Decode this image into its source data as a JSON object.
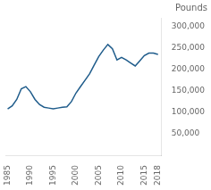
{
  "chart_data": {
    "type": "line",
    "ylabel": "Pounds",
    "x": [
      1985,
      1986,
      1987,
      1988,
      1989,
      1990,
      1991,
      1992,
      1993,
      1994,
      1995,
      1996,
      1997,
      1998,
      1999,
      2000,
      2001,
      2002,
      2003,
      2004,
      2005,
      2006,
      2007,
      2008,
      2009,
      2010,
      2011,
      2012,
      2013,
      2014,
      2015,
      2016,
      2017,
      2018
    ],
    "values": [
      108000,
      115000,
      130000,
      155000,
      160000,
      148000,
      130000,
      118000,
      112000,
      110000,
      108000,
      110000,
      112000,
      113000,
      125000,
      145000,
      160000,
      175000,
      190000,
      210000,
      230000,
      245000,
      258000,
      248000,
      222000,
      228000,
      222000,
      215000,
      208000,
      220000,
      232000,
      238000,
      238000,
      235000
    ],
    "color": "#1f5c8b",
    "xlim": [
      1984.5,
      2018.8
    ],
    "xticks": [
      1985,
      1990,
      1995,
      2000,
      2005,
      2010,
      2015,
      2018
    ],
    "ylim": [
      0,
      320000
    ],
    "yticks": [
      {
        "value": 50000,
        "label": "50,000"
      },
      {
        "value": 100000,
        "label": "100,000"
      },
      {
        "value": 150000,
        "label": "150,000"
      },
      {
        "value": 200000,
        "label": "200,000"
      },
      {
        "value": 250000,
        "label": "250,000"
      },
      {
        "value": 300000,
        "label": "300,000"
      }
    ],
    "grid": false
  }
}
